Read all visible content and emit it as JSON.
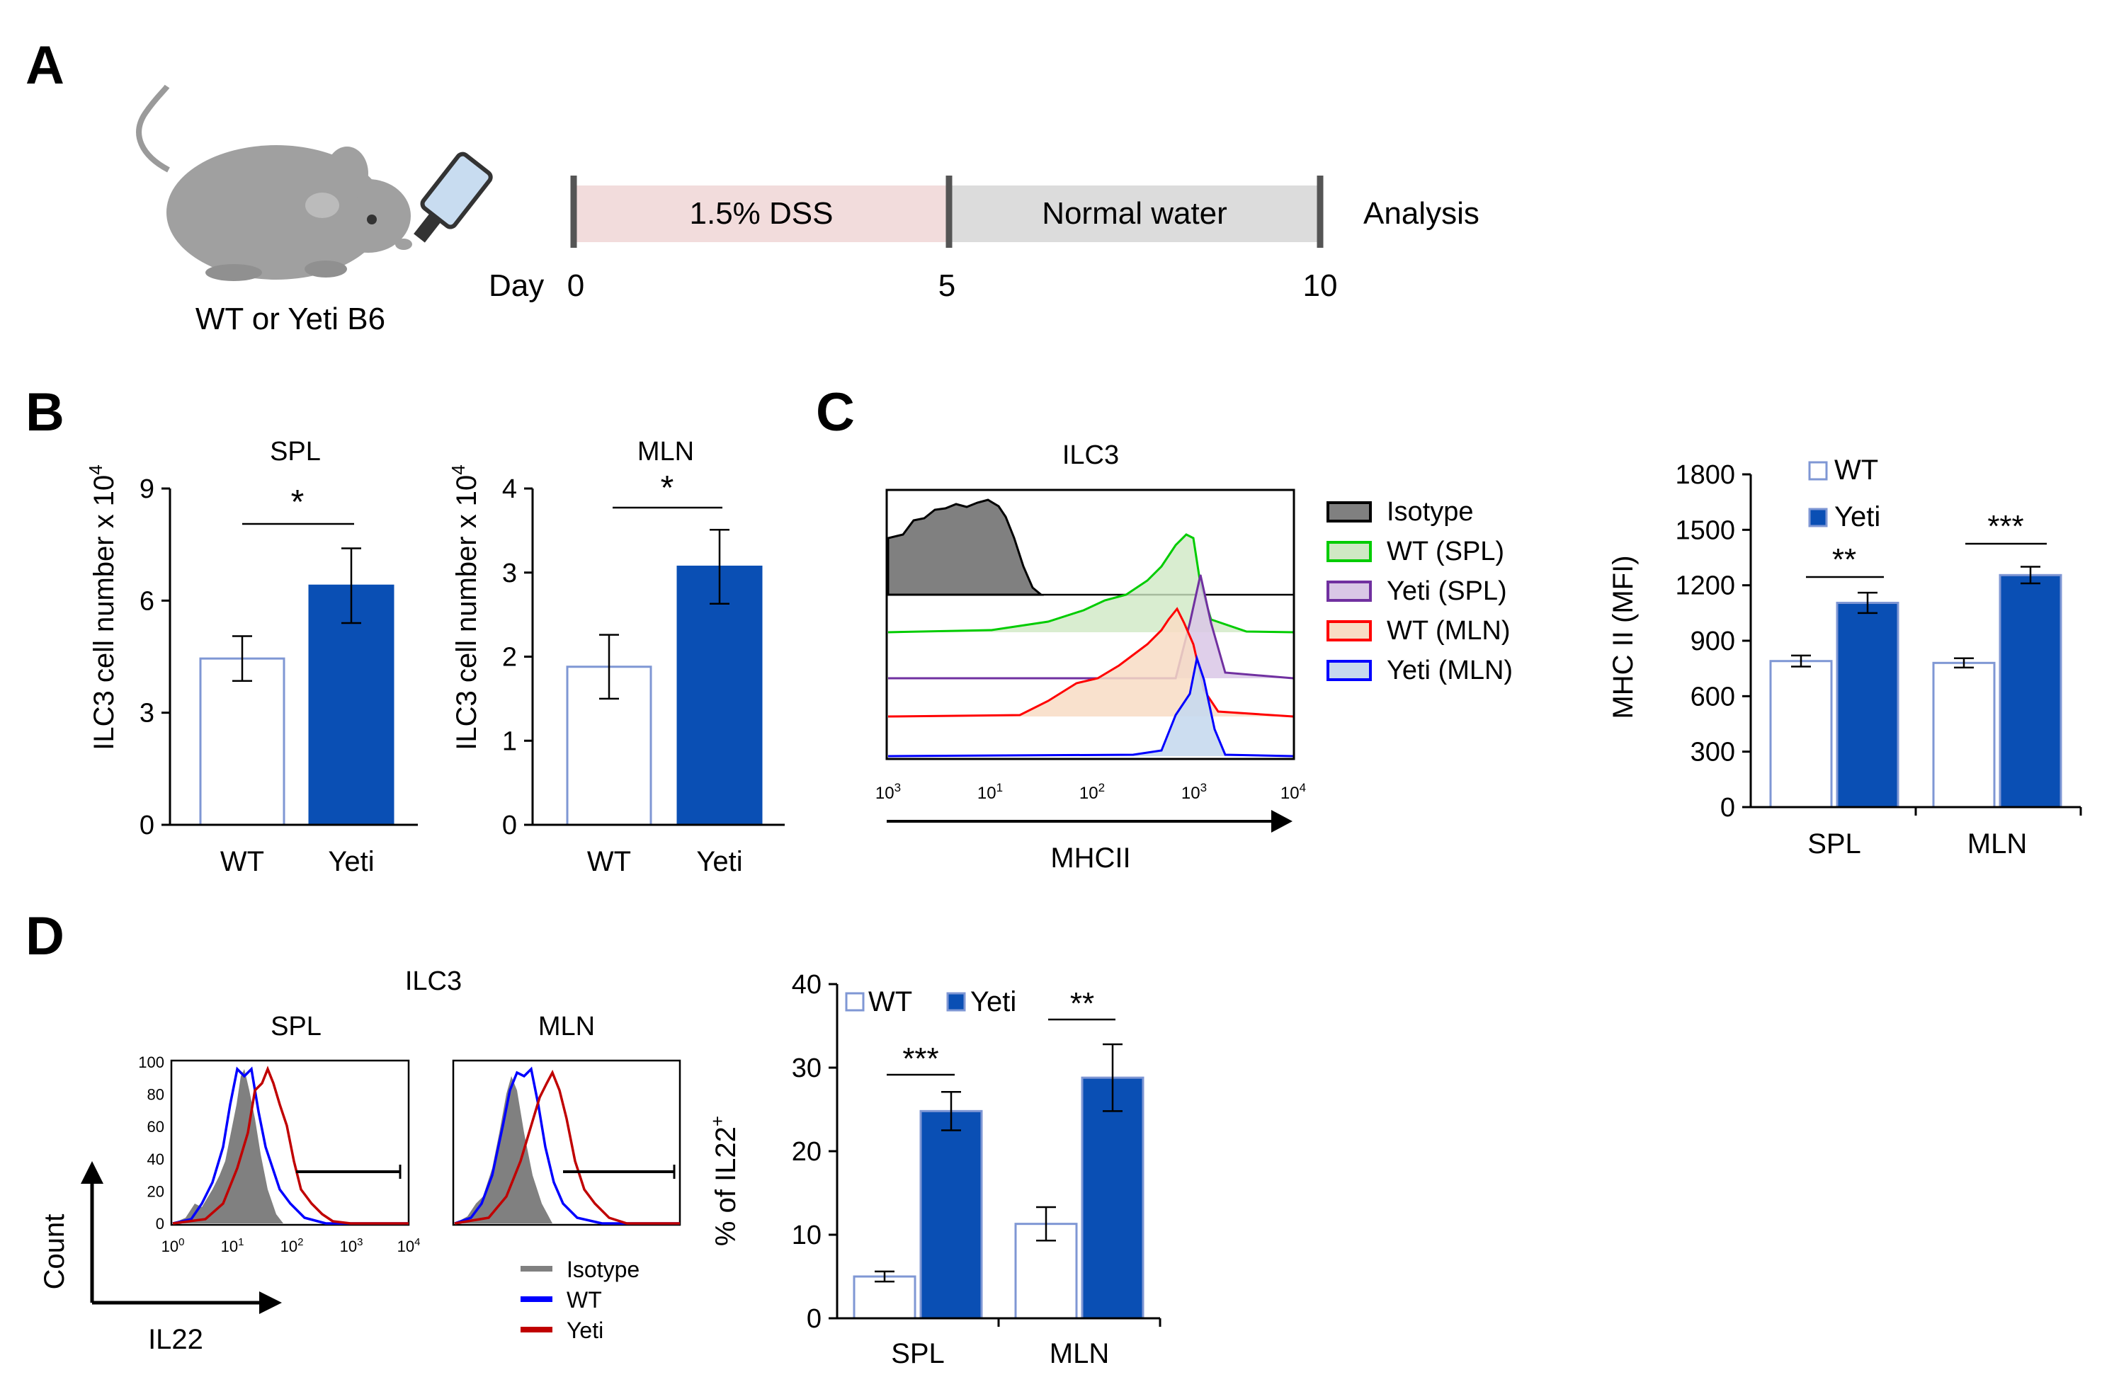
{
  "panels": {
    "a": "A",
    "b": "B",
    "c": "C",
    "d": "D"
  },
  "panel_a": {
    "mouse_label": "WT or Yeti B6",
    "day_label": "Day",
    "days": [
      "0",
      "5",
      "10"
    ],
    "segments": [
      {
        "label": "1.5% DSS",
        "color": "#f2dcdc"
      },
      {
        "label": "Normal water",
        "color": "#dcdcdc"
      }
    ],
    "end_label": "Analysis"
  },
  "chart_data": [
    {
      "id": "B-SPL",
      "type": "bar",
      "title": "SPL",
      "categories": [
        "WT",
        "Yeti"
      ],
      "values": [
        4.45,
        6.4
      ],
      "errors": [
        0.6,
        1.0
      ],
      "ylabel": "ILC3 cell number x 10^4",
      "ylabel_main": "ILC3 cell number  x 10",
      "ylabel_exp": "4",
      "ylim": [
        0,
        9
      ],
      "yticks": [
        "0",
        "3",
        "6",
        "9"
      ],
      "significance": "*"
    },
    {
      "id": "B-MLN",
      "type": "bar",
      "title": "MLN",
      "categories": [
        "WT",
        "Yeti"
      ],
      "values": [
        1.88,
        3.07
      ],
      "errors": [
        0.38,
        0.44
      ],
      "ylabel": "ILC3 cell number x 10^4",
      "ylabel_main": "ILC3 cell number  x 10",
      "ylabel_exp": "4",
      "ylim": [
        0,
        4
      ],
      "yticks": [
        "0",
        "1",
        "2",
        "3",
        "4"
      ],
      "significance": "*"
    },
    {
      "id": "C-hist",
      "type": "area",
      "title": "ILC3",
      "xlabel": "MHCII",
      "xticks": [
        {
          "b": "10",
          "e": "3"
        },
        {
          "b": "10",
          "e": "1"
        },
        {
          "b": "10",
          "e": "2"
        },
        {
          "b": "10",
          "e": "3"
        },
        {
          "b": "10",
          "e": "4"
        }
      ],
      "legend": [
        {
          "label": "Isotype",
          "color": "#000000",
          "fill": "#808080"
        },
        {
          "label": "WT (SPL)",
          "color": "#00cc00",
          "fill": "#cfe8c4"
        },
        {
          "label": "Yeti (SPL)",
          "color": "#7030a0",
          "fill": "#d9c7e6"
        },
        {
          "label": "WT (MLN)",
          "color": "#ff0000",
          "fill": "#f8dcc4"
        },
        {
          "label": "Yeti (MLN)",
          "color": "#0000ff",
          "fill": "#c7d9ee"
        }
      ]
    },
    {
      "id": "C-bar",
      "type": "bar",
      "ylabel": "MHC II (MFI)",
      "categories": [
        "SPL",
        "MLN"
      ],
      "series": [
        {
          "name": "WT",
          "values": [
            790,
            780
          ],
          "errors": [
            30,
            25
          ]
        },
        {
          "name": "Yeti",
          "values": [
            1105,
            1255
          ],
          "errors": [
            55,
            45
          ]
        }
      ],
      "ylim": [
        0,
        1800
      ],
      "yticks": [
        "0",
        "300",
        "600",
        "900",
        "1200",
        "1500",
        "1800"
      ],
      "significance": [
        "**",
        "***"
      ]
    },
    {
      "id": "D-hist",
      "type": "area",
      "title": "ILC3",
      "subtitles": [
        "SPL",
        "MLN"
      ],
      "yticks": [
        "0",
        "20",
        "40",
        "60",
        "80",
        "100"
      ],
      "xticks": [
        {
          "b": "10",
          "e": "0"
        },
        {
          "b": "10",
          "e": "1"
        },
        {
          "b": "10",
          "e": "2"
        },
        {
          "b": "10",
          "e": "3"
        },
        {
          "b": "10",
          "e": "4"
        }
      ],
      "ylabel": "Count",
      "xlabel": "IL22",
      "legend": [
        {
          "label": "Isotype",
          "color": "#808080"
        },
        {
          "label": "WT",
          "color": "#0000ff"
        },
        {
          "label": "Yeti",
          "color": "#c00000"
        }
      ]
    },
    {
      "id": "D-bar",
      "type": "bar",
      "ylabel": "% of IL22+",
      "ylabel_main": "% of IL22",
      "ylabel_sup": "+",
      "categories": [
        "SPL",
        "MLN"
      ],
      "series": [
        {
          "name": "WT",
          "values": [
            5,
            11.3
          ],
          "errors": [
            0.6,
            2.0
          ]
        },
        {
          "name": "Yeti",
          "values": [
            24.8,
            28.8
          ],
          "errors": [
            2.3,
            4.0
          ]
        }
      ],
      "ylim": [
        0,
        40
      ],
      "yticks": [
        "0",
        "10",
        "20",
        "30",
        "40"
      ],
      "significance": [
        "***",
        "**"
      ]
    }
  ],
  "colors": {
    "bar_yeti": "#0a4fb4",
    "bar_wt_edge": "#7f97d4"
  }
}
